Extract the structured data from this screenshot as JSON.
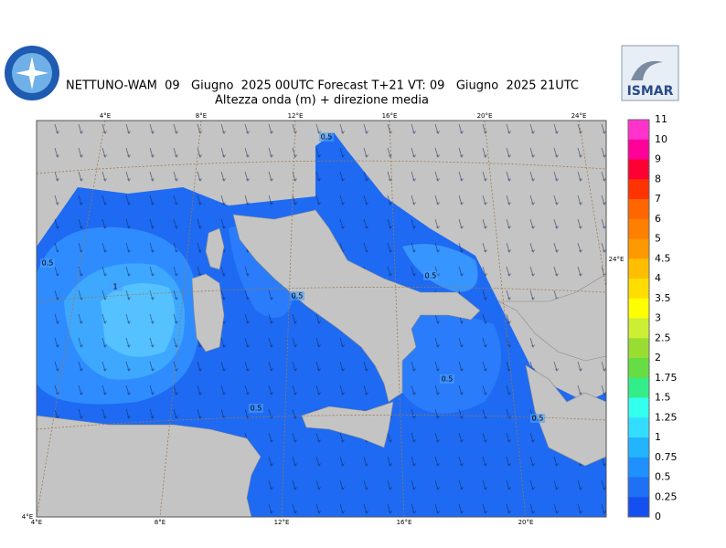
{
  "header": {
    "title": "NETTUNO-WAM  09   Giugno  2025 00UTC Forecast T+21 VT: 09   Giugno  2025 21UTC",
    "subtitle": "Altezza onda (m) + direzione media"
  },
  "logo": {
    "text": "ISMAR"
  },
  "map": {
    "top_labels": [
      "4°E",
      "8°E",
      "12°E",
      "16°E",
      "20°E",
      "24°E"
    ],
    "bottom_labels": [
      "4°E",
      "8°E",
      "12°E",
      "16°E",
      "20°E"
    ],
    "left_label": "4°E",
    "right_label": "24°E",
    "contour_labels": [
      "0.5",
      "1",
      "0.5",
      "0.5",
      "0.5",
      "0.5",
      "0.5",
      "0.5"
    ]
  },
  "colorbar": {
    "labels": [
      "11",
      "10",
      "9",
      "8",
      "7",
      "6",
      "5",
      "4.5",
      "4",
      "3.5",
      "3",
      "2.5",
      "2",
      "1.75",
      "1.5",
      "1.25",
      "1",
      "0.75",
      "0.5",
      "0.25",
      "0"
    ],
    "colors": [
      "#ff33cc",
      "#ff0099",
      "#ff0033",
      "#ff3300",
      "#ff6600",
      "#ff7f00",
      "#ff9900",
      "#ffbf00",
      "#ffdd00",
      "#ffff00",
      "#ccee33",
      "#99dd33",
      "#66dd44",
      "#33ee88",
      "#33ffee",
      "#33ddff",
      "#22b4ff",
      "#1e90ff",
      "#1e70f5",
      "#1450f0"
    ]
  }
}
